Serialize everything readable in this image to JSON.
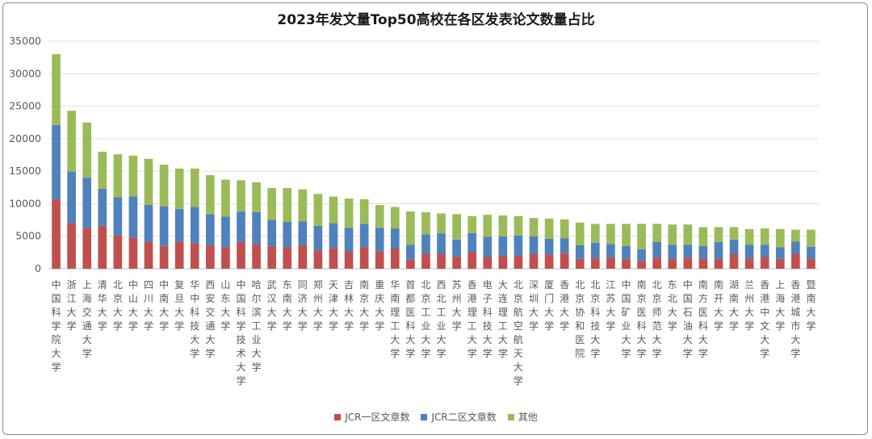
{
  "chart_data": {
    "type": "bar",
    "stacked": true,
    "title": "2023年发文量Top50高校在各区发表论文数量占比",
    "xlabel": "",
    "ylabel": "",
    "ylim": [
      0,
      35000
    ],
    "yticks": [
      0,
      5000,
      10000,
      15000,
      20000,
      25000,
      30000,
      35000
    ],
    "grid": true,
    "legend_position": "bottom",
    "categories": [
      "中国科学院大学",
      "浙江大学",
      "上海交通大学",
      "清华大学",
      "北京大学",
      "中山大学",
      "四川大学",
      "中南大学",
      "复旦大学",
      "华中科技大学",
      "西安交通大学",
      "山东大学",
      "中国科学技术大学",
      "哈尔滨工业大学",
      "武汉大学",
      "东南大学",
      "同济大学",
      "郑州大学",
      "天津大学",
      "吉林大学",
      "南京大学",
      "重庆大学",
      "华南理工大学",
      "首都医科大学",
      "北京工业大学",
      "西北工业大学",
      "苏州大学",
      "香港理工大学",
      "电子科技大学",
      "大连理工大学",
      "北京航空航天大学",
      "深圳大学",
      "厦门大学",
      "香港大学",
      "北京协和医院",
      "北京科技大学",
      "江苏大学",
      "中国矿业大学",
      "南京医科大学",
      "北京师范大学",
      "东北大学",
      "中国石油大学",
      "南方医科大学",
      "南开大学",
      "湖南大学",
      "兰州大学",
      "香港中文大学",
      "上海大学",
      "香港城市大学",
      "暨南大学"
    ],
    "series": [
      {
        "name": "JCR一区文章数",
        "color": "#c0504d",
        "values": [
          10700,
          7000,
          6300,
          6600,
          5100,
          4800,
          4100,
          3500,
          4100,
          3900,
          3600,
          3300,
          4100,
          3800,
          3500,
          3300,
          3600,
          2800,
          3200,
          2600,
          3300,
          2700,
          3100,
          1400,
          2300,
          2300,
          1900,
          2600,
          1800,
          2000,
          2000,
          2300,
          2200,
          2400,
          1500,
          1600,
          1700,
          1500,
          1200,
          1700,
          1500,
          1700,
          1500,
          1500,
          2300,
          1600,
          1800,
          1500,
          2300,
          1500
        ]
      },
      {
        "name": "JCR二区文章数",
        "color": "#4f81bd",
        "values": [
          11400,
          7900,
          7700,
          5700,
          5900,
          6300,
          5700,
          6100,
          5100,
          5600,
          4800,
          4700,
          4700,
          4900,
          4000,
          3900,
          3700,
          3800,
          3800,
          3700,
          3600,
          3600,
          3100,
          2300,
          3000,
          3100,
          2600,
          2900,
          3100,
          3000,
          3100,
          2700,
          2400,
          2300,
          2100,
          2400,
          2100,
          2000,
          1800,
          2400,
          2200,
          2000,
          2000,
          2600,
          2200,
          2100,
          1900,
          1800,
          1900,
          1900
        ]
      },
      {
        "name": "其他",
        "color": "#9bbb59",
        "values": [
          10900,
          9400,
          8500,
          5700,
          6600,
          6300,
          7100,
          6400,
          6200,
          5900,
          6000,
          5700,
          4800,
          4600,
          4900,
          5200,
          4900,
          4900,
          4100,
          4500,
          3800,
          3500,
          3300,
          5100,
          3400,
          3100,
          3900,
          2600,
          3400,
          3200,
          3000,
          2800,
          3100,
          2900,
          3500,
          2900,
          3100,
          3400,
          3900,
          2800,
          3100,
          3100,
          2900,
          2300,
          1900,
          2400,
          2500,
          2800,
          1800,
          2600
        ]
      }
    ]
  }
}
